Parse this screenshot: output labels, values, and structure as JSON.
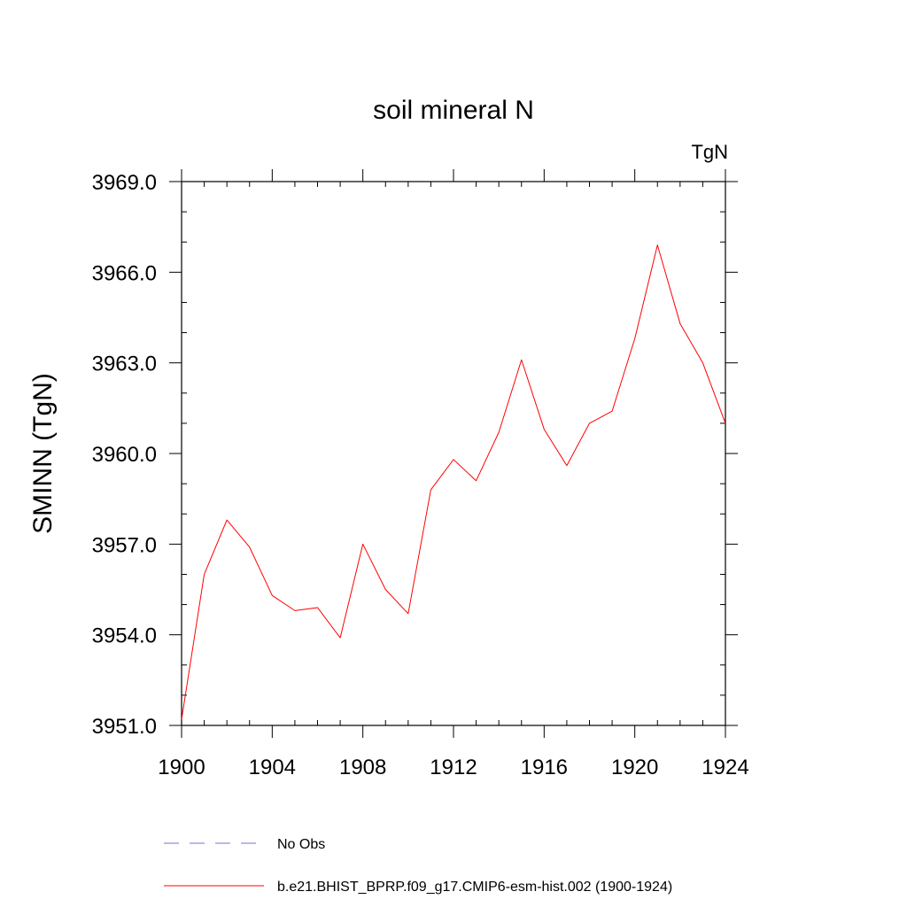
{
  "chart_data": {
    "type": "line",
    "title": "soil mineral N",
    "units": "TgN",
    "ylabel": "SMINN  (TgN)",
    "xlabel": "",
    "xlim": [
      1900,
      1924
    ],
    "ylim": [
      3951.0,
      3969.0
    ],
    "x_ticks": [
      1900,
      1904,
      1908,
      1912,
      1916,
      1920,
      1924
    ],
    "x_tick_labels": [
      "1900",
      "1904",
      "1908",
      "1912",
      "1916",
      "1920",
      "1924"
    ],
    "y_ticks": [
      3951.0,
      3954.0,
      3957.0,
      3960.0,
      3963.0,
      3966.0,
      3969.0
    ],
    "y_tick_labels": [
      "3951.0",
      "3954.0",
      "3957.0",
      "3960.0",
      "3963.0",
      "3966.0",
      "3969.0"
    ],
    "grid": false,
    "series": [
      {
        "name": "b.e21.BHIST_BPRP.f09_g17.CMIP6-esm-hist.002 (1900-1924)",
        "color": "#ff0000",
        "dash": "solid",
        "x": [
          1900,
          1901,
          1902,
          1903,
          1904,
          1905,
          1906,
          1907,
          1908,
          1909,
          1910,
          1911,
          1912,
          1913,
          1914,
          1915,
          1916,
          1917,
          1918,
          1919,
          1920,
          1921,
          1922,
          1923,
          1924
        ],
        "values": [
          3951.2,
          3956.0,
          3957.8,
          3956.9,
          3955.3,
          3954.8,
          3954.9,
          3953.9,
          3957.0,
          3955.5,
          3954.7,
          3958.8,
          3959.8,
          3959.1,
          3960.7,
          3963.1,
          3960.8,
          3959.6,
          3961.0,
          3961.4,
          3963.8,
          3966.9,
          3964.3,
          3963.0,
          3961.0
        ]
      }
    ],
    "legend": [
      {
        "label": "No Obs",
        "color": "#7a6fd0",
        "dash": "dashed"
      },
      {
        "label": "b.e21.BHIST_BPRP.f09_g17.CMIP6-esm-hist.002 (1900-1924)",
        "color": "#ff0000",
        "dash": "solid"
      }
    ],
    "legend_position": "bottom"
  }
}
